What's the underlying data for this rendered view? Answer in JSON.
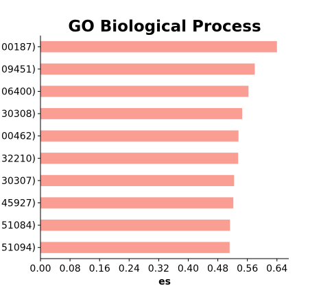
{
  "chart_data": {
    "type": "bar",
    "orientation": "horizontal",
    "title": "GO Biological Process",
    "xlabel": "es",
    "ylabel": "",
    "xlim": [
      0,
      0.672
    ],
    "xticks": [
      "0.00",
      "0.08",
      "0.16",
      "0.24",
      "0.32",
      "0.40",
      "0.48",
      "0.56",
      "0.64"
    ],
    "categories": [
      "00187)",
      "09451)",
      "06400)",
      "30308)",
      "00462)",
      "32210)",
      "30307)",
      "45927)",
      "51084)",
      "51094)"
    ],
    "values": [
      0.64,
      0.58,
      0.563,
      0.546,
      0.536,
      0.535,
      0.524,
      0.522,
      0.513,
      0.512
    ],
    "bar_color": "#fa9e94",
    "grid": false,
    "legend": "none"
  }
}
